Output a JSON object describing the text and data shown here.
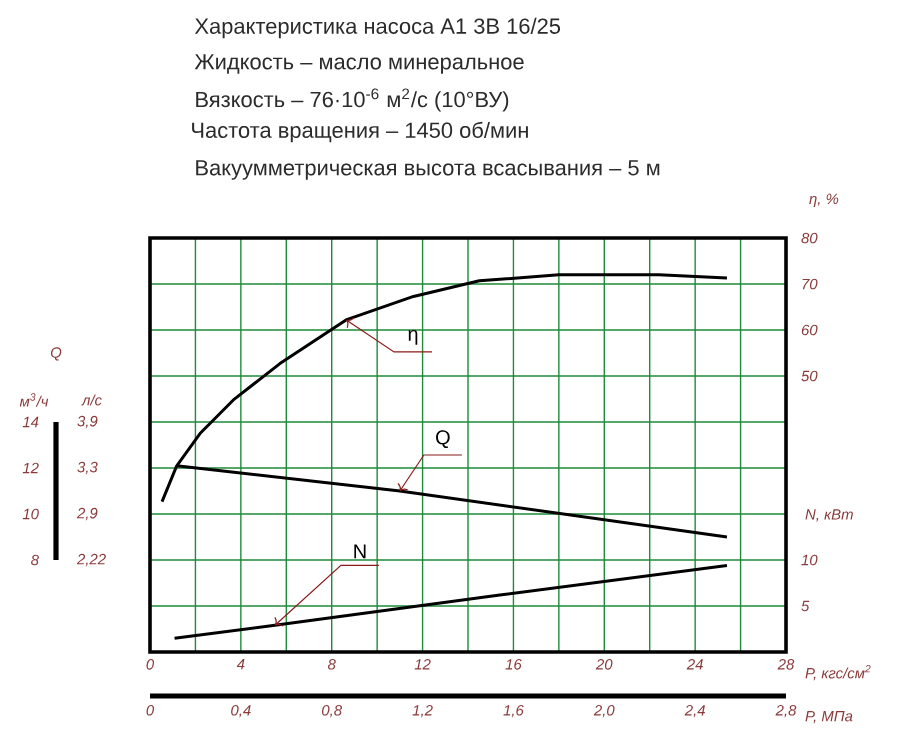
{
  "chart_data": {
    "type": "line",
    "title": "Характеристика насоса А1 3В 16/25",
    "annotations": [
      "Жидкость – масло минеральное",
      "Вязкость – 76·10$^{-6}$ м$^{2}$/с (10°ВУ)",
      "Частота вращения – 1450 об/мин",
      "Вакуумметрическая высота всасывания – 5 м",
      "м$^{3}$/ч",
      "л/с",
      "2,22",
      "2,9",
      "3,3",
      "3,9"
    ],
    "xlabel": "P, кгс/см$^{2}$",
    "x2label": "P, МПа",
    "ylabel": "Q",
    "y2label": "η, %",
    "y3label": "N, кВт",
    "xlim": [
      0,
      28
    ],
    "xticks": [
      0,
      {
        "value": 2,
        "label": null
      },
      4,
      {
        "value": 6,
        "label": null
      },
      8,
      {
        "value": 10,
        "label": null
      },
      12,
      {
        "value": 14,
        "label": null
      },
      16,
      {
        "value": 18,
        "label": null
      },
      20,
      {
        "value": 22,
        "label": null
      },
      24,
      {
        "value": 26,
        "label": null
      },
      28
    ],
    "x2lim": [
      0,
      2.8
    ],
    "x2ticks": [
      0,
      {
        "value": 0.4,
        "label": "0,4"
      },
      {
        "value": 0.8,
        "label": "0,8"
      },
      {
        "value": 1.2,
        "label": "1,2"
      },
      {
        "value": 1.6,
        "label": "1,6"
      },
      {
        "value": 2.0,
        "label": "2,0"
      },
      {
        "value": 2.4,
        "label": "2,4"
      },
      {
        "value": 2.8,
        "label": "2,8"
      }
    ],
    "ylim": [
      4,
      22
    ],
    "yticks": [
      8,
      10,
      12,
      14
    ],
    "y2lim": [
      -10,
      80
    ],
    "y2ticks": [
      {
        "value": 0,
        "label": null
      },
      {
        "value": 10,
        "label": null
      },
      {
        "value": 20,
        "label": null
      },
      {
        "value": 30,
        "label": null
      },
      {
        "value": 40,
        "label": null
      },
      50,
      60,
      70,
      80
    ],
    "y3lim": [
      0,
      45
    ],
    "y3ticks": [
      5,
      10
    ],
    "grid": true,
    "series": [
      {
        "name": "η",
        "color": "#000000",
        "axis": "y2",
        "x": [
          0.53,
          1.17,
          2.2,
          3.67,
          5.72,
          8.63,
          11.6,
          14.5,
          18.0,
          22.4,
          25.4
        ],
        "values": [
          22.7,
          30.4,
          37.5,
          44.8,
          52.7,
          62.2,
          67.3,
          70.7,
          72.0,
          72.0,
          71.3
        ]
      },
      {
        "name": "Q",
        "color": "#000000",
        "axis": "y",
        "x": [
          1.17,
          11.0,
          25.4
        ],
        "values": [
          12.1,
          11.0,
          9.0
        ]
      },
      {
        "name": "N",
        "color": "#000000",
        "axis": "y3",
        "x": [
          1.08,
          5.5,
          15.4,
          25.4
        ],
        "values": [
          1.5,
          2.9,
          6.2,
          9.4
        ]
      }
    ]
  }
}
